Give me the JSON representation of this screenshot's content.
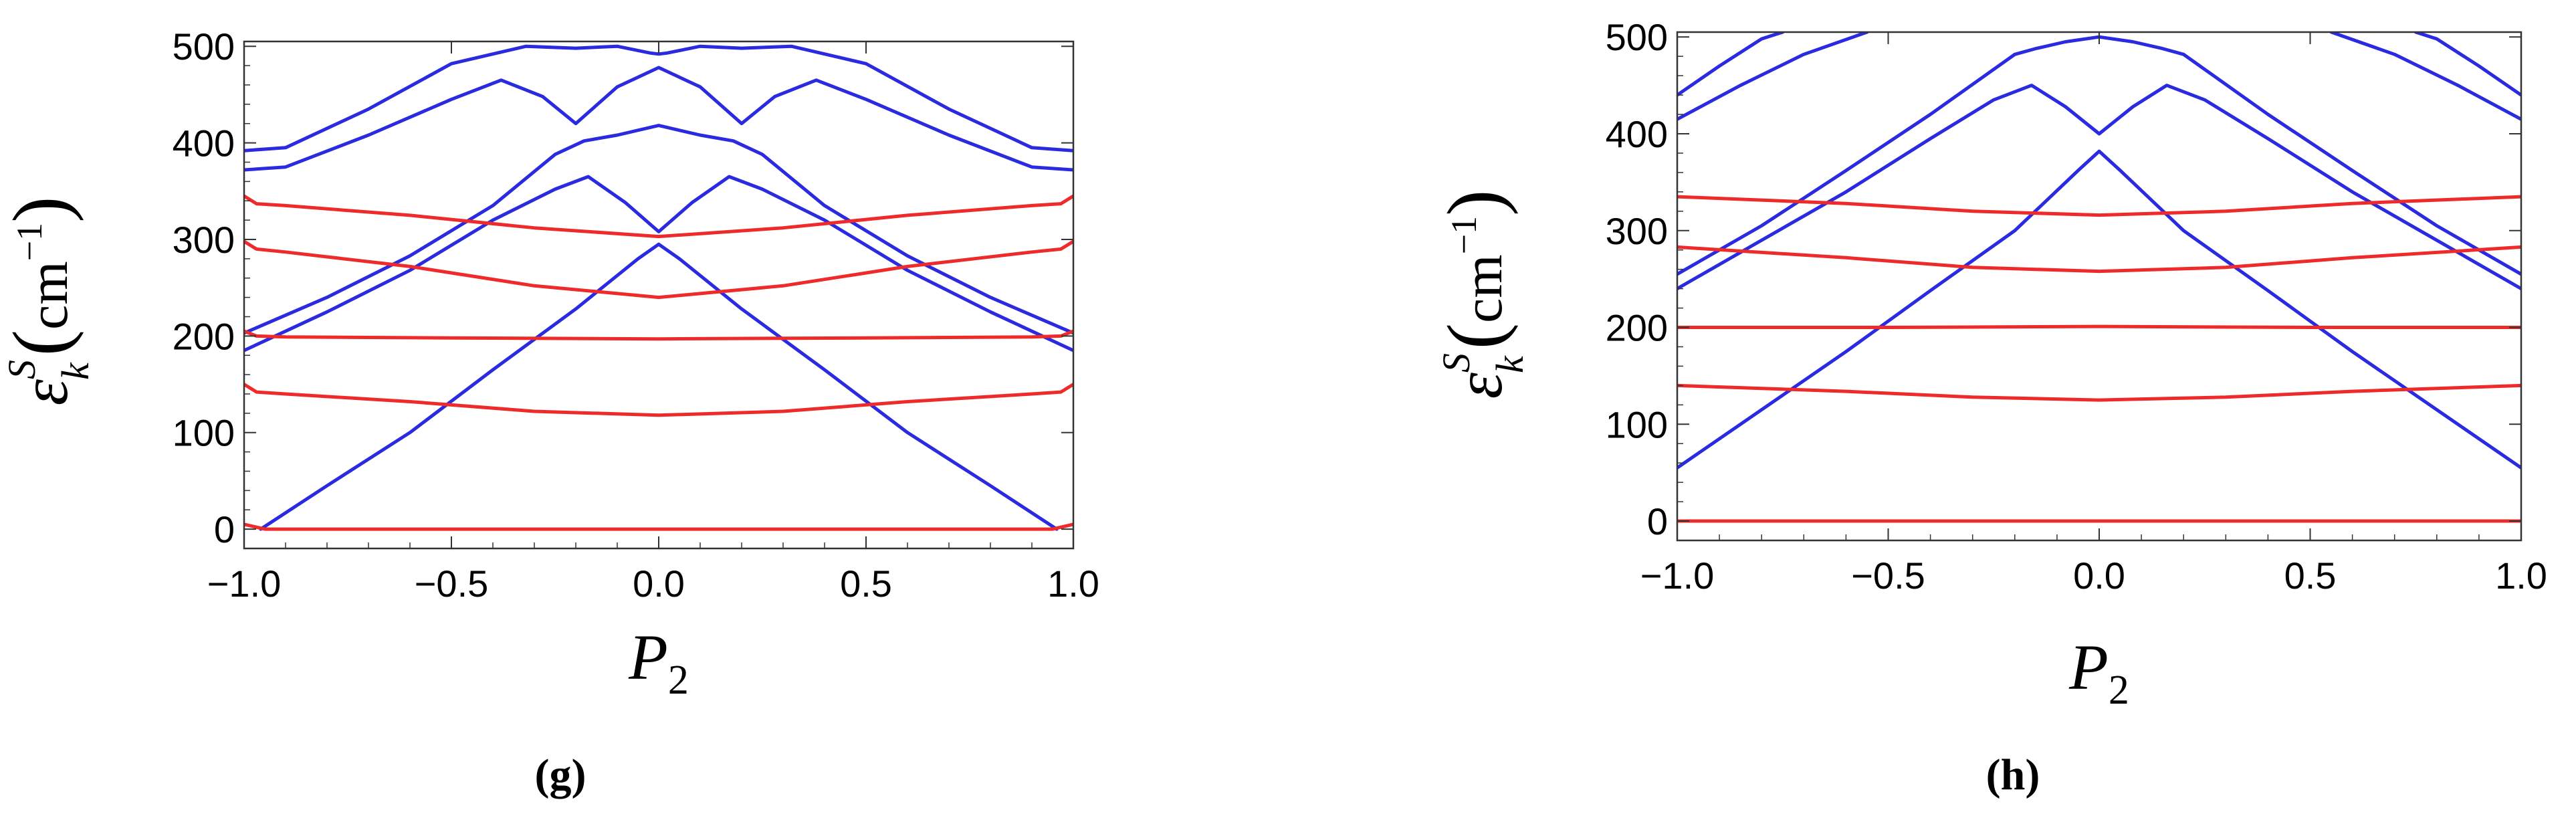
{
  "chart_data": [
    {
      "type": "line",
      "panel_label": "(g)",
      "xlim": [
        -1.0,
        1.0
      ],
      "ylim": [
        -20,
        505
      ],
      "xticks": [
        -1.0,
        -0.5,
        0.0,
        0.5,
        1.0
      ],
      "xtick_labels": [
        "−1.0",
        "−0.5",
        "0.0",
        "0.5",
        "1.0"
      ],
      "yticks": [
        0,
        100,
        200,
        300,
        400,
        500
      ],
      "ytick_labels": [
        "0",
        "100",
        "200",
        "300",
        "400",
        "500"
      ],
      "xlabel": "P",
      "xlabel_sub": "2",
      "ylabel": "ε",
      "ylabel_sup": "S",
      "ylabel_sub": "k",
      "ylabel_unit": "cm",
      "ylabel_unit_exp": "−1",
      "grid": false,
      "colors": {
        "blue": "#2a2ae0",
        "red": "#ee2a2a"
      },
      "series": [
        {
          "color": "blue",
          "x": [
            -0.96,
            -0.8,
            -0.6,
            -0.4,
            -0.2,
            -0.05,
            0.0,
            0.05,
            0.2,
            0.4,
            0.6,
            0.8,
            0.96
          ],
          "y": [
            0,
            45,
            100,
            165,
            228,
            280,
            295,
            280,
            228,
            165,
            100,
            45,
            0
          ]
        },
        {
          "color": "blue",
          "x": [
            -1.0,
            -0.8,
            -0.6,
            -0.4,
            -0.25,
            -0.17,
            -0.08,
            0.0,
            0.08,
            0.17,
            0.25,
            0.4,
            0.6,
            0.8,
            1.0
          ],
          "y": [
            185,
            225,
            268,
            320,
            352,
            365,
            338,
            308,
            338,
            365,
            352,
            320,
            268,
            225,
            185
          ]
        },
        {
          "color": "blue",
          "x": [
            -1.0,
            -0.8,
            -0.6,
            -0.4,
            -0.25,
            -0.18,
            -0.1,
            0.0,
            0.1,
            0.18,
            0.25,
            0.4,
            0.6,
            0.8,
            1.0
          ],
          "y": [
            203,
            240,
            283,
            335,
            388,
            402,
            408,
            418,
            408,
            402,
            388,
            335,
            283,
            240,
            203
          ]
        },
        {
          "color": "blue",
          "x": [
            -1.0,
            -0.9,
            -0.7,
            -0.5,
            -0.38,
            -0.28,
            -0.2,
            -0.1,
            0.0,
            0.1,
            0.2,
            0.28,
            0.38,
            0.5,
            0.7,
            0.9,
            1.0
          ],
          "y": [
            372,
            375,
            408,
            445,
            465,
            448,
            420,
            458,
            478,
            458,
            420,
            448,
            465,
            445,
            408,
            375,
            372
          ]
        },
        {
          "color": "blue",
          "x": [
            -1.0,
            -0.9,
            -0.7,
            -0.5,
            -0.32,
            -0.2,
            -0.1,
            -0.02,
            0.0,
            0.02,
            0.1,
            0.2,
            0.32,
            0.5,
            0.7,
            0.9,
            1.0
          ],
          "y": [
            392,
            395,
            435,
            482,
            500,
            498,
            500,
            493,
            492,
            493,
            500,
            498,
            500,
            482,
            435,
            395,
            392
          ]
        },
        {
          "color": "red",
          "x": [
            -1.0,
            -0.97,
            -0.95,
            0.95,
            0.97,
            1.0
          ],
          "y": [
            5,
            2,
            0,
            0,
            2,
            5
          ]
        },
        {
          "color": "red",
          "x": [
            -1.0,
            -0.97,
            -0.9,
            -0.6,
            -0.3,
            0.0,
            0.3,
            0.6,
            0.9,
            0.97,
            1.0
          ],
          "y": [
            150,
            142,
            140,
            132,
            122,
            118,
            122,
            132,
            140,
            142,
            150
          ]
        },
        {
          "color": "red",
          "x": [
            -1.0,
            -0.97,
            -0.9,
            -0.5,
            0.0,
            0.5,
            0.9,
            0.97,
            1.0
          ],
          "y": [
            205,
            200,
            199,
            198,
            197,
            198,
            199,
            200,
            205
          ]
        },
        {
          "color": "red",
          "x": [
            -1.0,
            -0.97,
            -0.9,
            -0.6,
            -0.3,
            0.0,
            0.3,
            0.6,
            0.9,
            0.97,
            1.0
          ],
          "y": [
            298,
            290,
            287,
            272,
            252,
            240,
            252,
            272,
            287,
            290,
            298
          ]
        },
        {
          "color": "red",
          "x": [
            -1.0,
            -0.97,
            -0.9,
            -0.6,
            -0.3,
            0.0,
            0.3,
            0.6,
            0.9,
            0.97,
            1.0
          ],
          "y": [
            345,
            337,
            335,
            325,
            312,
            303,
            312,
            325,
            335,
            337,
            345
          ]
        }
      ]
    },
    {
      "type": "line",
      "panel_label": "(h)",
      "xlim": [
        -1.0,
        1.0
      ],
      "ylim": [
        -20,
        505
      ],
      "xticks": [
        -1.0,
        -0.5,
        0.0,
        0.5,
        1.0
      ],
      "xtick_labels": [
        "−1.0",
        "−0.5",
        "0.0",
        "0.5",
        "1.0"
      ],
      "yticks": [
        0,
        100,
        200,
        300,
        400,
        500
      ],
      "ytick_labels": [
        "0",
        "100",
        "200",
        "300",
        "400",
        "500"
      ],
      "xlabel": "P",
      "xlabel_sub": "2",
      "ylabel": "ε",
      "ylabel_sup": "S",
      "ylabel_sub": "k",
      "ylabel_unit": "cm",
      "ylabel_unit_exp": "−1",
      "grid": false,
      "colors": {
        "blue": "#2a2ae0",
        "red": "#ee2a2a"
      },
      "series": [
        {
          "color": "blue",
          "x": [
            -1.0,
            -0.8,
            -0.6,
            -0.4,
            -0.2,
            -0.05,
            0.0,
            0.05,
            0.2,
            0.4,
            0.6,
            0.8,
            1.0
          ],
          "y": [
            55,
            115,
            175,
            238,
            300,
            362,
            382,
            362,
            300,
            238,
            175,
            115,
            55
          ]
        },
        {
          "color": "blue",
          "x": [
            -1.0,
            -0.8,
            -0.6,
            -0.4,
            -0.25,
            -0.16,
            -0.08,
            0.0,
            0.08,
            0.16,
            0.25,
            0.4,
            0.6,
            0.8,
            1.0
          ],
          "y": [
            240,
            290,
            340,
            395,
            435,
            450,
            428,
            400,
            428,
            450,
            435,
            395,
            340,
            290,
            240
          ]
        },
        {
          "color": "blue",
          "x": [
            -1.0,
            -0.8,
            -0.6,
            -0.4,
            -0.2,
            -0.15,
            -0.08,
            0.0,
            0.08,
            0.15,
            0.2,
            0.4,
            0.6,
            0.8,
            1.0
          ],
          "y": [
            255,
            305,
            362,
            420,
            482,
            488,
            495,
            500,
            495,
            488,
            482,
            420,
            362,
            305,
            255
          ]
        },
        {
          "color": "blue",
          "x": [
            -1.0,
            -0.85,
            -0.7,
            -0.55
          ],
          "y": [
            415,
            450,
            482,
            505
          ]
        },
        {
          "color": "blue",
          "x": [
            -1.0,
            -0.9,
            -0.8,
            -0.75
          ],
          "y": [
            440,
            470,
            498,
            505
          ]
        },
        {
          "color": "blue",
          "x": [
            0.55,
            0.7,
            0.85,
            1.0
          ],
          "y": [
            505,
            482,
            450,
            415
          ]
        },
        {
          "color": "blue",
          "x": [
            0.75,
            0.8,
            0.9,
            1.0
          ],
          "y": [
            505,
            498,
            470,
            440
          ]
        },
        {
          "color": "red",
          "x": [
            -1.0,
            1.0
          ],
          "y": [
            0,
            0
          ]
        },
        {
          "color": "red",
          "x": [
            -1.0,
            -0.6,
            -0.3,
            0.0,
            0.3,
            0.6,
            1.0
          ],
          "y": [
            140,
            134,
            128,
            125,
            128,
            134,
            140
          ]
        },
        {
          "color": "red",
          "x": [
            -1.0,
            -0.5,
            0.0,
            0.5,
            1.0
          ],
          "y": [
            200,
            200,
            201,
            200,
            200
          ]
        },
        {
          "color": "red",
          "x": [
            -1.0,
            -0.6,
            -0.3,
            0.0,
            0.3,
            0.6,
            1.0
          ],
          "y": [
            283,
            272,
            262,
            258,
            262,
            272,
            283
          ]
        },
        {
          "color": "red",
          "x": [
            -1.0,
            -0.6,
            -0.3,
            0.0,
            0.3,
            0.6,
            1.0
          ],
          "y": [
            335,
            328,
            320,
            316,
            320,
            328,
            335
          ]
        }
      ]
    }
  ]
}
